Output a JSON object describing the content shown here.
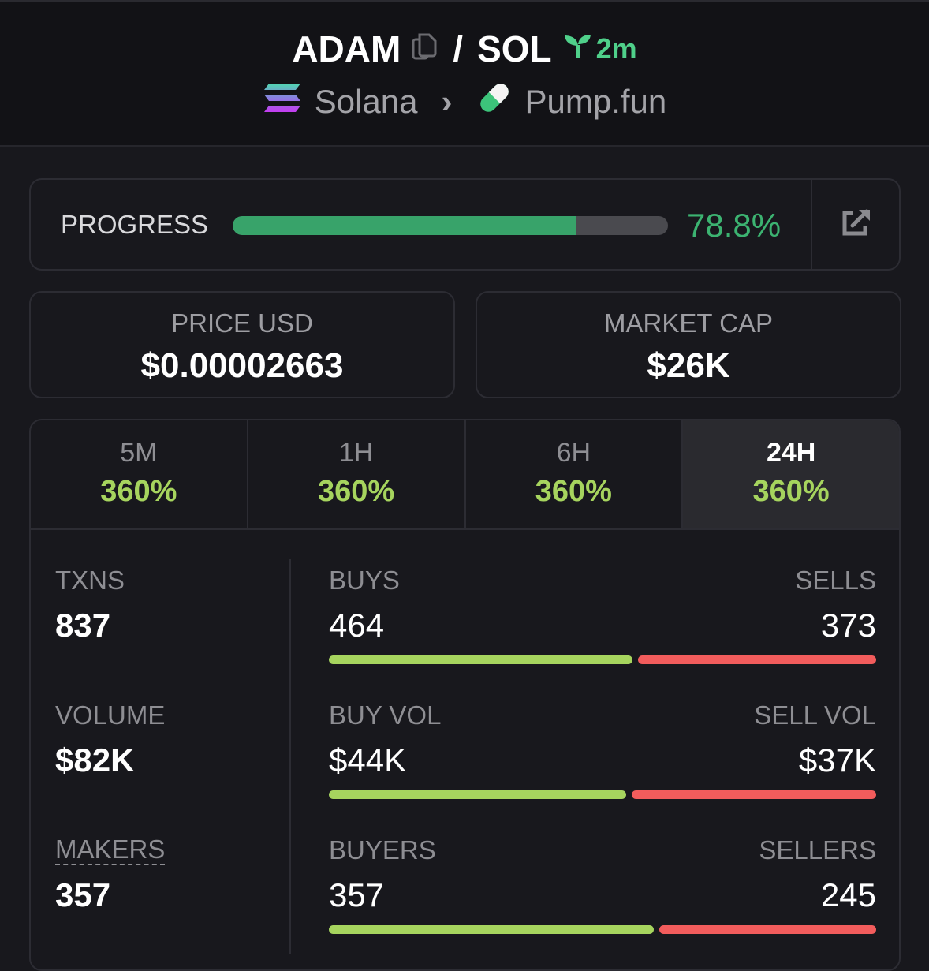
{
  "header": {
    "token": "ADAM",
    "separator": "/",
    "quote": "SOL",
    "age": "2m",
    "chain": "Solana",
    "chevron": "›",
    "dex": "Pump.fun"
  },
  "progress": {
    "label": "PROGRESS",
    "value_text": "78.8%",
    "percent": 78.8
  },
  "price": {
    "label": "PRICE USD",
    "value": "$0.00002663"
  },
  "market_cap": {
    "label": "MARKET CAP",
    "value": "$26K"
  },
  "tabs": [
    {
      "label": "5M",
      "change": "360%"
    },
    {
      "label": "1H",
      "change": "360%"
    },
    {
      "label": "6H",
      "change": "360%"
    },
    {
      "label": "24H",
      "change": "360%",
      "active": true
    }
  ],
  "left": [
    {
      "label": "TXNS",
      "value": "837"
    },
    {
      "label": "VOLUME",
      "value": "$82K"
    },
    {
      "label": "MAKERS",
      "value": "357"
    }
  ],
  "right": [
    {
      "buy_label": "BUYS",
      "sell_label": "SELLS",
      "buy_value": "464",
      "sell_value": "373",
      "buy_num": 464,
      "sell_num": 373
    },
    {
      "buy_label": "BUY VOL",
      "sell_label": "SELL VOL",
      "buy_value": "$44K",
      "sell_value": "$37K",
      "buy_num": 44,
      "sell_num": 37
    },
    {
      "buy_label": "BUYERS",
      "sell_label": "SELLERS",
      "buy_value": "357",
      "sell_value": "245",
      "buy_num": 357,
      "sell_num": 245
    }
  ],
  "colors": {
    "buy": "#a6d45e",
    "sell": "#f25c5c",
    "progress": "#38a36a",
    "accent": "#4fd08a"
  }
}
